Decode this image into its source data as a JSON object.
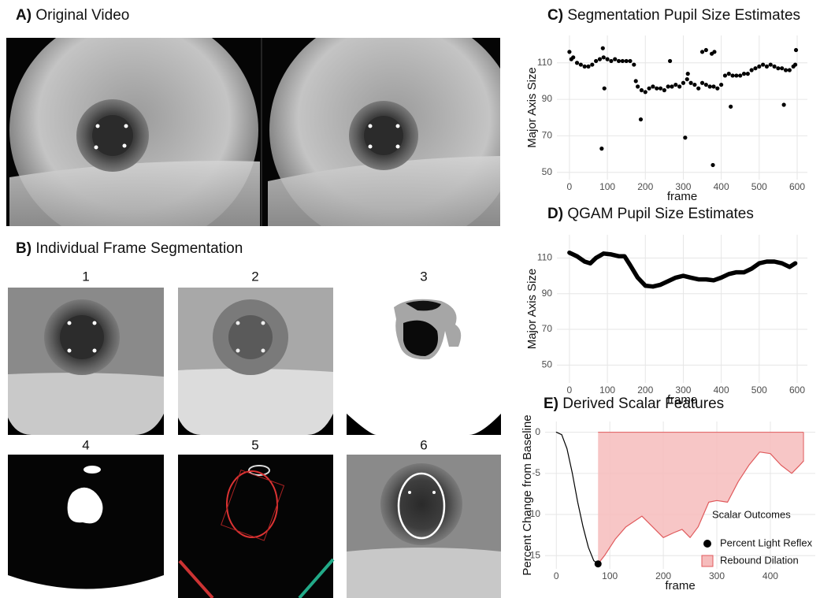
{
  "figure": {
    "panel_a": {
      "title": "A) Original Video"
    },
    "panel_b": {
      "title": "B) Individual Frame Segmentation",
      "frame_labels": [
        "1",
        "2",
        "3",
        "4",
        "5",
        "6"
      ]
    }
  },
  "chart_data": [
    {
      "type": "scatter",
      "title": "C) Segmentation Pupil Size Estimates",
      "xlabel": "frame",
      "ylabel": "Major Axis Size",
      "x": [
        0,
        5,
        10,
        20,
        30,
        40,
        50,
        60,
        70,
        80,
        90,
        100,
        110,
        120,
        130,
        140,
        150,
        160,
        170,
        175,
        180,
        190,
        200,
        210,
        220,
        230,
        240,
        250,
        260,
        270,
        280,
        290,
        300,
        310,
        320,
        330,
        340,
        350,
        360,
        370,
        380,
        390,
        400,
        410,
        420,
        430,
        440,
        450,
        460,
        470,
        480,
        490,
        500,
        510,
        520,
        530,
        540,
        550,
        560,
        570,
        580,
        590,
        595,
        85,
        88,
        92,
        188,
        265,
        305,
        312,
        350,
        360,
        375,
        378,
        382,
        425,
        565,
        597
      ],
      "values": [
        116,
        112,
        113,
        110,
        109,
        108,
        108,
        109,
        111,
        112,
        113,
        112,
        111,
        112,
        111,
        111,
        111,
        111,
        109,
        100,
        97,
        95,
        94,
        96,
        97,
        96,
        96,
        95,
        97,
        97,
        98,
        97,
        99,
        101,
        99,
        98,
        96,
        99,
        98,
        97,
        97,
        96,
        98,
        103,
        104,
        103,
        103,
        103,
        104,
        104,
        106,
        107,
        108,
        109,
        108,
        109,
        108,
        107,
        107,
        106,
        106,
        108,
        109,
        63,
        118,
        96,
        79,
        111,
        69,
        104,
        116,
        117,
        115,
        54,
        116,
        86,
        87,
        117
      ],
      "color": "#000000",
      "xlim": [
        -33,
        627
      ],
      "ylim": [
        46,
        125
      ],
      "xticks": [
        0,
        100,
        200,
        300,
        400,
        500,
        600
      ],
      "yticks": [
        50,
        70,
        90,
        110
      ],
      "grid": true
    },
    {
      "type": "line",
      "title": "D) QGAM Pupil Size Estimates",
      "xlabel": "frame",
      "ylabel": "Major Axis Size",
      "x": [
        0,
        20,
        40,
        55,
        70,
        90,
        110,
        130,
        145,
        160,
        180,
        200,
        220,
        240,
        260,
        280,
        300,
        320,
        340,
        360,
        380,
        400,
        420,
        440,
        460,
        480,
        500,
        520,
        540,
        560,
        580,
        595
      ],
      "values": [
        113,
        111,
        108,
        107,
        110,
        112.5,
        112,
        111,
        111,
        106,
        99,
        94.5,
        94,
        95,
        97,
        99,
        100,
        99,
        98,
        98,
        97.5,
        99,
        101,
        102,
        102,
        104,
        107,
        108,
        108,
        107,
        105,
        107
      ],
      "color": "#000000",
      "xlim": [
        -33,
        627
      ],
      "ylim": [
        40,
        123
      ],
      "xticks": [
        0,
        100,
        200,
        300,
        400,
        500,
        600
      ],
      "yticks": [
        50,
        70,
        90,
        110
      ],
      "grid": true
    },
    {
      "type": "area",
      "title": "E) Derived Scalar Features",
      "xlabel": "frame",
      "ylabel": "Percent Change from Baseline",
      "x": [
        0,
        10,
        20,
        30,
        40,
        50,
        60,
        70,
        78,
        90,
        110,
        130,
        160,
        180,
        200,
        220,
        235,
        250,
        265,
        285,
        300,
        320,
        340,
        360,
        380,
        400,
        420,
        440,
        455,
        462
      ],
      "values": [
        0,
        -0.3,
        -2,
        -5,
        -8.5,
        -11.5,
        -14,
        -15.6,
        -16,
        -15,
        -13,
        -11.5,
        -10.2,
        -11.5,
        -12.8,
        -12.2,
        -11.8,
        -12.8,
        -11.5,
        -8.5,
        -8.3,
        -8.5,
        -6,
        -4,
        -2.4,
        -2.6,
        -4,
        -5,
        -4,
        -3.5
      ],
      "color": "#000000",
      "legend_title": "Scalar Outcomes",
      "outcomes": [
        {
          "name": "Percent Light Reflex",
          "color": "#000000",
          "x": 78,
          "value": -16
        },
        {
          "name": "Rebound Dilation",
          "color": "#f6bcbc",
          "line_color": "#e05a5c"
        }
      ],
      "xlim": [
        -21,
        484
      ],
      "ylim": [
        -16.6,
        1.3
      ],
      "xticks": [
        0,
        100,
        200,
        300,
        400
      ],
      "yticks": [
        0,
        -5,
        -10,
        -15
      ],
      "grid": true
    }
  ]
}
